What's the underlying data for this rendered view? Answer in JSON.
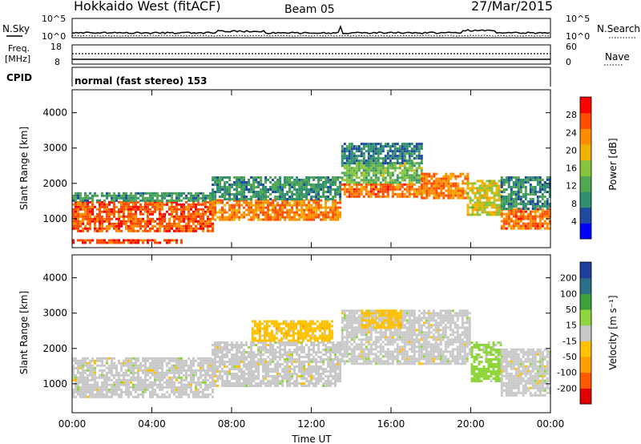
{
  "header": {
    "title": "Hokkaido West (fitACF)",
    "beam": "Beam 05",
    "date": "27/Mar/2015"
  },
  "noise_panel": {
    "left_label": "N.Sky",
    "right_label": "N.Search",
    "left_ticks": [
      "10^5",
      "10^0"
    ],
    "right_ticks": [
      "10^5",
      "10^0"
    ]
  },
  "freq_panel": {
    "left_label": "Freq.",
    "left_unit": "[MHz]",
    "left_ticks": [
      "18",
      "8"
    ],
    "right_label": "Nave",
    "right_ticks": [
      "60",
      "0"
    ]
  },
  "cpid": {
    "label": "CPID",
    "value": "normal (fast stereo) 153"
  },
  "colors": {
    "power_scale": [
      "#0000ff",
      "#1e4ba0",
      "#2f8f6f",
      "#52a852",
      "#88c53c",
      "#f0b400",
      "#ff8c00",
      "#ff4c00",
      "#ff0000"
    ],
    "velocity_scale": [
      "#e00000",
      "#ff5a00",
      "#ff9e00",
      "#ffc000",
      "#c8c8c8",
      "#8fd63c",
      "#3ca03c",
      "#2c6f8a",
      "#1f3fa0"
    ]
  },
  "chart_data": [
    {
      "type": "heatmap",
      "name": "power",
      "ylabel": "Slant Range [km]",
      "x_ticks": [
        "00:00",
        "04:00",
        "08:00",
        "12:00",
        "16:00",
        "20:00",
        "00:00"
      ],
      "x_range_hours": [
        0,
        24
      ],
      "y_ticks": [
        1000,
        2000,
        3000,
        4000
      ],
      "y_range_km": [
        180,
        4650
      ],
      "colorbar_label": "Power [dB]",
      "colorbar_ticks": [
        "4",
        "8",
        "12",
        "16",
        "20",
        "24",
        "28"
      ],
      "colorbar_range": [
        0,
        32
      ],
      "regions": [
        {
          "from_hour": 0,
          "to_hour": 7,
          "min_km": 650,
          "max_km": 1500,
          "level": 26
        },
        {
          "from_hour": 0,
          "to_hour": 7,
          "min_km": 1500,
          "max_km": 1750,
          "level": 10
        },
        {
          "from_hour": 0,
          "to_hour": 5.5,
          "min_km": 300,
          "max_km": 420,
          "level": 27
        },
        {
          "from_hour": 7,
          "to_hour": 13.5,
          "min_km": 950,
          "max_km": 1550,
          "level": 24
        },
        {
          "from_hour": 7,
          "to_hour": 13.5,
          "min_km": 1550,
          "max_km": 2200,
          "level": 10
        },
        {
          "from_hour": 13.5,
          "to_hour": 17.5,
          "min_km": 1600,
          "max_km": 2000,
          "level": 25
        },
        {
          "from_hour": 13.5,
          "to_hour": 17.5,
          "min_km": 2000,
          "max_km": 2600,
          "level": 14
        },
        {
          "from_hour": 13.5,
          "to_hour": 17.5,
          "min_km": 2600,
          "max_km": 3150,
          "level": 8
        },
        {
          "from_hour": 17.5,
          "to_hour": 19.8,
          "min_km": 1600,
          "max_km": 2300,
          "level": 24
        },
        {
          "from_hour": 19.8,
          "to_hour": 21.5,
          "min_km": 1100,
          "max_km": 2100,
          "level": 18
        },
        {
          "from_hour": 21.5,
          "to_hour": 24,
          "min_km": 700,
          "max_km": 1300,
          "level": 25
        },
        {
          "from_hour": 21.5,
          "to_hour": 24,
          "min_km": 1300,
          "max_km": 2200,
          "level": 9
        }
      ]
    },
    {
      "type": "heatmap",
      "name": "velocity",
      "ylabel": "Slant Range [km]",
      "xlabel": "Time UT",
      "x_ticks": [
        "00:00",
        "04:00",
        "08:00",
        "12:00",
        "16:00",
        "20:00",
        "00:00"
      ],
      "x_range_hours": [
        0,
        24
      ],
      "y_ticks": [
        1000,
        2000,
        3000,
        4000
      ],
      "y_range_km": [
        180,
        4650
      ],
      "colorbar_label": "Velocity [m s⁻¹]",
      "colorbar_ticks": [
        "-200",
        "-100",
        "-50",
        "-15",
        "15",
        "50",
        "100",
        "200"
      ],
      "colorbar_range": [
        -250,
        250
      ],
      "regions": [
        {
          "from_hour": 0,
          "to_hour": 7,
          "min_km": 600,
          "max_km": 1750,
          "level": 0
        },
        {
          "from_hour": 7,
          "to_hour": 13.5,
          "min_km": 950,
          "max_km": 2200,
          "level": 0
        },
        {
          "from_hour": 9,
          "to_hour": 13,
          "min_km": 2200,
          "max_km": 2800,
          "level": -40
        },
        {
          "from_hour": 13.5,
          "to_hour": 20,
          "min_km": 1600,
          "max_km": 3100,
          "level": 0
        },
        {
          "from_hour": 14.5,
          "to_hour": 16.5,
          "min_km": 2600,
          "max_km": 3100,
          "level": -40
        },
        {
          "from_hour": 20,
          "to_hour": 21.5,
          "min_km": 1100,
          "max_km": 2200,
          "level": 40
        },
        {
          "from_hour": 21.5,
          "to_hour": 24,
          "min_km": 700,
          "max_km": 2000,
          "level": 0
        }
      ]
    }
  ]
}
